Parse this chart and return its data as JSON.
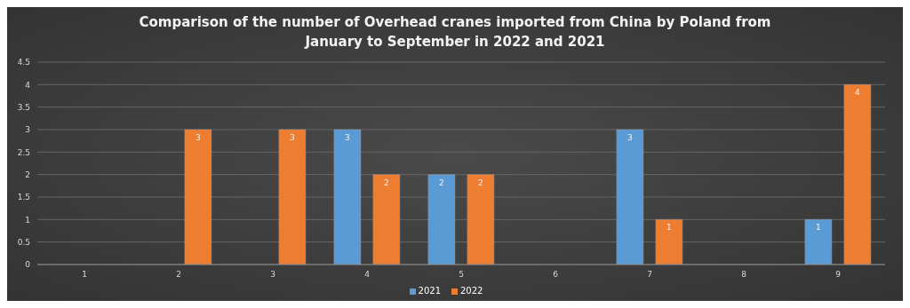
{
  "chart_data": {
    "type": "bar",
    "title": "Comparison of the number of Overhead cranes imported from China by Poland from January to September in 2022 and 2021",
    "categories": [
      "1",
      "2",
      "3",
      "4",
      "5",
      "6",
      "7",
      "8",
      "9"
    ],
    "series": [
      {
        "name": "2021",
        "color": "#5b9bd5",
        "values": [
          0,
          0,
          0,
          3,
          2,
          0,
          3,
          0,
          1
        ],
        "value_labels": [
          null,
          null,
          null,
          "3",
          "2",
          null,
          "3",
          null,
          "1"
        ]
      },
      {
        "name": "2022",
        "color": "#ed7d31",
        "values": [
          0,
          3,
          3,
          2,
          2,
          0,
          1,
          0,
          4
        ],
        "value_labels": [
          null,
          "3",
          "3",
          "2",
          "2",
          null,
          "1",
          null,
          "4"
        ]
      }
    ],
    "ylim": [
      0,
      4.5
    ],
    "yticks": [
      0,
      0.5,
      1,
      1.5,
      2,
      2.5,
      3,
      3.5,
      4,
      4.5
    ],
    "grid": "y",
    "legend": "bottom"
  }
}
